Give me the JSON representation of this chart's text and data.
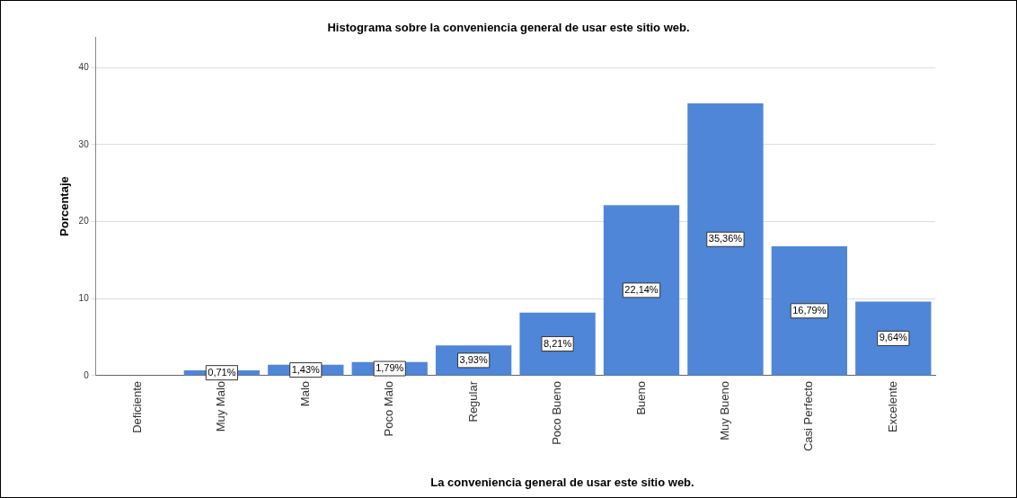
{
  "chart_data": {
    "type": "bar",
    "title": "Histograma sobre la conveniencia general de usar este sitio web.",
    "xlabel": "La conveniencia general de usar este sitio web.",
    "ylabel": "Porcentaje",
    "categories": [
      "Deficiente",
      "Muy Malo",
      "Malo",
      "Poco Malo",
      "Regular",
      "Poco Bueno",
      "Bueno",
      "Muy Bueno",
      "Casi Perfecto",
      "Excelente"
    ],
    "values": [
      0,
      0.71,
      1.43,
      1.79,
      3.93,
      8.21,
      22.14,
      35.36,
      16.79,
      9.64
    ],
    "value_labels": [
      null,
      "0,71%",
      "1,43%",
      "1,79%",
      "3,93%",
      "8,21%",
      "22,14%",
      "35,36%",
      "16,79%",
      "9,64%"
    ],
    "color": "#4f86d8",
    "ylim": [
      0,
      44
    ],
    "yticks": [
      0,
      10,
      20,
      30,
      40
    ],
    "grid": "y"
  }
}
